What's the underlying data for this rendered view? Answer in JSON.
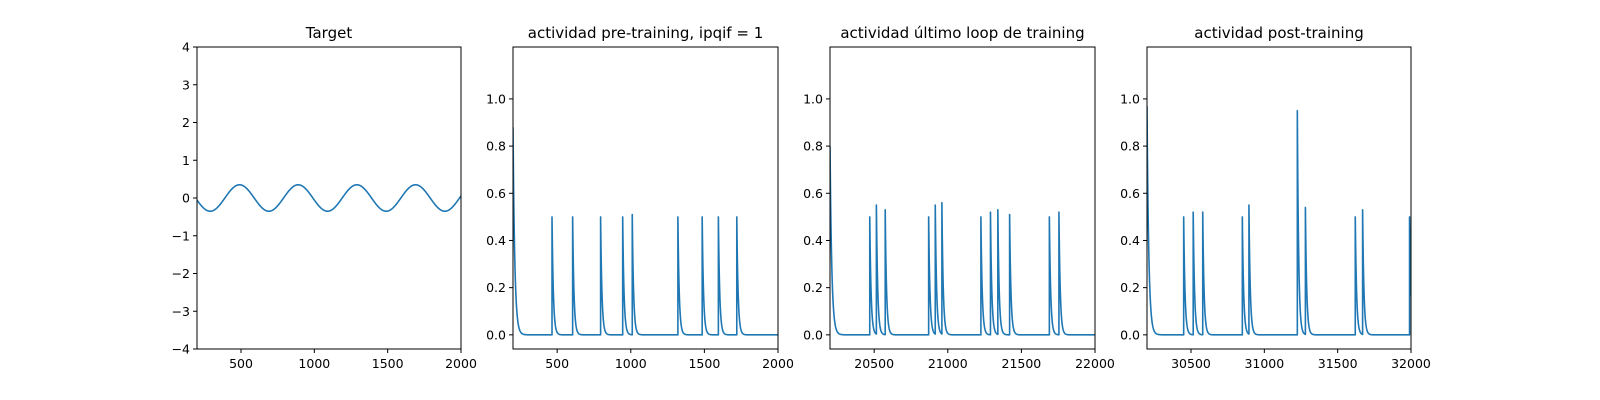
{
  "figure": {
    "background": "#ffffff",
    "line_color": "#1f77b4"
  },
  "chart_data": [
    {
      "type": "line",
      "title": "Target",
      "xlabel": "",
      "ylabel": "",
      "xlim": [
        200,
        2000
      ],
      "ylim": [
        -4,
        4
      ],
      "xticks": [
        500,
        1000,
        1500,
        2000
      ],
      "yticks": [
        -4,
        -3,
        -2,
        -1,
        0,
        1,
        2,
        3,
        4
      ],
      "grid": false,
      "series": [
        {
          "kind": "sine",
          "amplitude": 0.35,
          "period": 400,
          "peak_at": 490,
          "x_start": 200,
          "x_end": 2000,
          "samples": 721
        }
      ]
    },
    {
      "type": "line",
      "title": "actividad pre-training, ipqif = 1",
      "xlabel": "",
      "ylabel": "",
      "xlim": [
        200,
        2000
      ],
      "ylim": [
        -0.06,
        1.22
      ],
      "xticks": [
        500,
        1000,
        1500,
        2000
      ],
      "yticks": [
        0.0,
        0.2,
        0.4,
        0.6,
        0.8,
        1.0
      ],
      "grid": false,
      "series": [
        {
          "kind": "spike_train",
          "x_start": 200,
          "x_end": 2000,
          "initial_value": 0.88,
          "initial_decay": 12,
          "decay": 9,
          "spikes": [
            {
              "x": 465,
              "height": 0.5
            },
            {
              "x": 605,
              "height": 0.5
            },
            {
              "x": 795,
              "height": 0.5
            },
            {
              "x": 945,
              "height": 0.5
            },
            {
              "x": 1010,
              "height": 0.51
            },
            {
              "x": 1320,
              "height": 0.5
            },
            {
              "x": 1485,
              "height": 0.5
            },
            {
              "x": 1595,
              "height": 0.5
            },
            {
              "x": 1720,
              "height": 0.5
            }
          ]
        }
      ]
    },
    {
      "type": "line",
      "title": "actividad último loop de training",
      "xlabel": "",
      "ylabel": "",
      "xlim": [
        20200,
        22000
      ],
      "ylim": [
        -0.06,
        1.22
      ],
      "xticks": [
        20500,
        21000,
        21500,
        22000
      ],
      "yticks": [
        0.0,
        0.2,
        0.4,
        0.6,
        0.8,
        1.0
      ],
      "grid": false,
      "series": [
        {
          "kind": "spike_train",
          "x_start": 20200,
          "x_end": 22000,
          "initial_value": 0.8,
          "initial_decay": 12,
          "decay": 9,
          "spikes": [
            {
              "x": 20470,
              "height": 0.5
            },
            {
              "x": 20515,
              "height": 0.55
            },
            {
              "x": 20575,
              "height": 0.53
            },
            {
              "x": 20870,
              "height": 0.5
            },
            {
              "x": 20915,
              "height": 0.55
            },
            {
              "x": 20960,
              "height": 0.56
            },
            {
              "x": 21225,
              "height": 0.5
            },
            {
              "x": 21290,
              "height": 0.52
            },
            {
              "x": 21340,
              "height": 0.53
            },
            {
              "x": 21420,
              "height": 0.51
            },
            {
              "x": 21690,
              "height": 0.5
            },
            {
              "x": 21755,
              "height": 0.52
            }
          ]
        }
      ]
    },
    {
      "type": "line",
      "title": "actividad post-training",
      "xlabel": "",
      "ylabel": "",
      "xlim": [
        30200,
        32000
      ],
      "ylim": [
        -0.06,
        1.22
      ],
      "xticks": [
        30500,
        31000,
        31500,
        32000
      ],
      "yticks": [
        0.0,
        0.2,
        0.4,
        0.6,
        0.8,
        1.0
      ],
      "grid": false,
      "series": [
        {
          "kind": "spike_train",
          "x_start": 30200,
          "x_end": 32000,
          "initial_value": 0.97,
          "initial_decay": 12,
          "decay": 9,
          "spikes": [
            {
              "x": 30450,
              "height": 0.5
            },
            {
              "x": 30515,
              "height": 0.52
            },
            {
              "x": 30580,
              "height": 0.52
            },
            {
              "x": 30850,
              "height": 0.5
            },
            {
              "x": 30895,
              "height": 0.55
            },
            {
              "x": 31225,
              "height": 0.95
            },
            {
              "x": 31280,
              "height": 0.54
            },
            {
              "x": 31620,
              "height": 0.5
            },
            {
              "x": 31670,
              "height": 0.53
            },
            {
              "x": 31990,
              "height": 0.5
            }
          ]
        }
      ]
    }
  ]
}
